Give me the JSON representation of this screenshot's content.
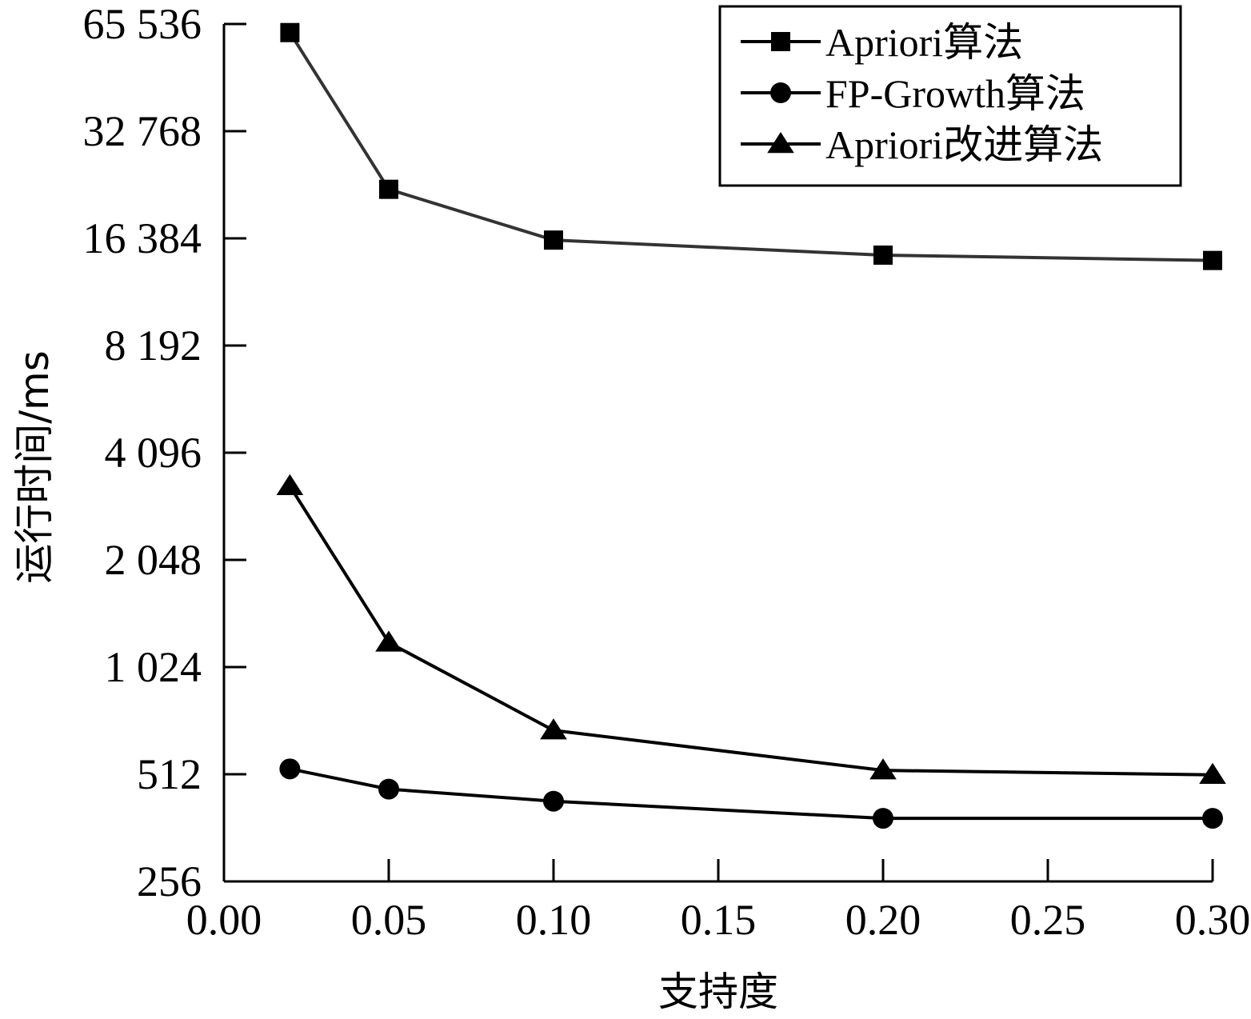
{
  "chart_data": {
    "type": "line",
    "xlabel": "支持度",
    "ylabel": "运行时间/ms",
    "xlim": [
      0.0,
      0.3
    ],
    "ylim": [
      256,
      65536
    ],
    "yscale": "log2",
    "x_ticks": [
      0.0,
      0.05,
      0.1,
      0.15,
      0.2,
      0.25,
      0.3
    ],
    "x_tick_labels": [
      "0.00",
      "0.05",
      "0.10",
      "0.15",
      "0.20",
      "0.25",
      "0.30"
    ],
    "y_ticks": [
      256,
      512,
      1024,
      2048,
      4096,
      8192,
      16384,
      32768,
      65536
    ],
    "y_tick_labels": [
      "256",
      "512",
      "1 024",
      "2 048",
      "4 096",
      "8 192",
      "16 384",
      "32 768",
      "65 536"
    ],
    "x": [
      0.02,
      0.05,
      0.1,
      0.2,
      0.3
    ],
    "legend_position": "top-right",
    "series": [
      {
        "name": "Apriori算法",
        "marker": "square",
        "color": "#333333",
        "values": [
          62000,
          22500,
          16200,
          14700,
          14200
        ]
      },
      {
        "name": "FP-Growth算法",
        "marker": "circle",
        "color": "#000000",
        "values": [
          530,
          465,
          430,
          385,
          385
        ]
      },
      {
        "name": "Apriori改进算法",
        "marker": "triangle",
        "color": "#000000",
        "values": [
          3300,
          1200,
          680,
          525,
          510
        ]
      }
    ]
  }
}
